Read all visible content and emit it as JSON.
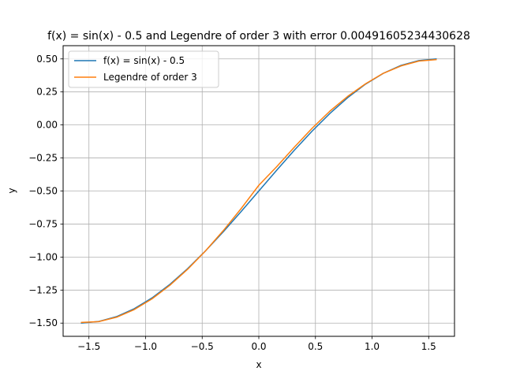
{
  "chart_data": {
    "type": "line",
    "title": "f(x) = sin(x) - 0.5 and Legendre of order 3 with error 0.00491605234430628",
    "xlabel": "x",
    "ylabel": "y",
    "xlim": [
      -1.7279,
      1.7279
    ],
    "ylim": [
      -1.6,
      0.6
    ],
    "xticks": [
      -1.5,
      -1.0,
      -0.5,
      0.0,
      0.5,
      1.0,
      1.5
    ],
    "xtick_labels": [
      "−1.5",
      "−1.0",
      "−0.5",
      "0.0",
      "0.5",
      "1.0",
      "1.5"
    ],
    "yticks": [
      0.5,
      0.25,
      0.0,
      -0.25,
      -0.5,
      -0.75,
      -1.0,
      -1.25,
      -1.5
    ],
    "ytick_labels": [
      "0.50",
      "0.25",
      "0.00",
      "−0.25",
      "−0.50",
      "−0.75",
      "−1.00",
      "−1.25",
      "−1.50"
    ],
    "grid": true,
    "legend_position": "top-left",
    "x": [
      -1.5708,
      -1.4137,
      -1.2566,
      -1.0996,
      -0.9425,
      -0.7854,
      -0.6283,
      -0.4712,
      -0.3142,
      -0.1571,
      0.0,
      0.1571,
      0.3142,
      0.4712,
      0.6283,
      0.7854,
      0.9425,
      1.0996,
      1.2566,
      1.4137,
      1.5708
    ],
    "series": [
      {
        "name": "f(x) = sin(x) - 0.5",
        "color": "#1f77b4",
        "values": [
          -1.5,
          -1.4877,
          -1.4511,
          -1.391,
          -1.309,
          -1.2071,
          -1.0878,
          -0.954,
          -0.809,
          -0.6564,
          -0.5,
          -0.3436,
          -0.191,
          -0.046,
          0.0878,
          0.2071,
          0.309,
          0.391,
          0.4511,
          0.4877,
          0.5
        ]
      },
      {
        "name": "Legendre of order 3",
        "color": "#ff7f0e",
        "values": [
          -1.4951,
          -1.4889,
          -1.4556,
          -1.3974,
          -1.3161,
          -1.2137,
          -1.0924,
          -0.954,
          -0.8006,
          -0.6342,
          -0.4568,
          -0.3164,
          -0.1679,
          -0.0244,
          0.1052,
          0.2167,
          0.3114,
          0.3911,
          0.4472,
          0.4839,
          0.4951
        ]
      }
    ]
  }
}
